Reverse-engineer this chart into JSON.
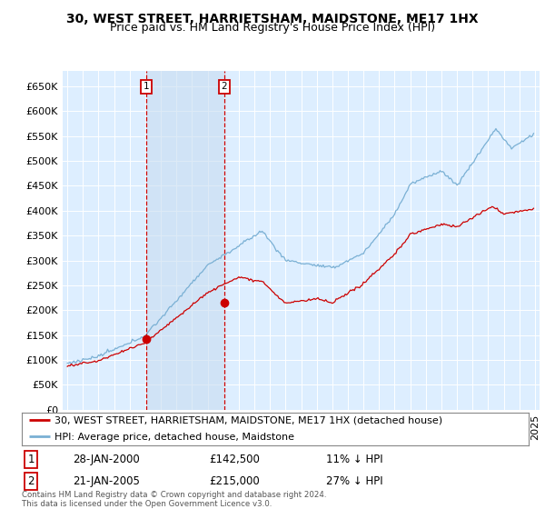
{
  "title": "30, WEST STREET, HARRIETSHAM, MAIDSTONE, ME17 1HX",
  "subtitle": "Price paid vs. HM Land Registry's House Price Index (HPI)",
  "ylim": [
    0,
    680000
  ],
  "yticks": [
    0,
    50000,
    100000,
    150000,
    200000,
    250000,
    300000,
    350000,
    400000,
    450000,
    500000,
    550000,
    600000,
    650000
  ],
  "ytick_labels": [
    "£0",
    "£50K",
    "£100K",
    "£150K",
    "£200K",
    "£250K",
    "£300K",
    "£350K",
    "£400K",
    "£450K",
    "£500K",
    "£550K",
    "£600K",
    "£650K"
  ],
  "xlim_min": 1994.7,
  "xlim_max": 2025.3,
  "sale1_x": 2000.07,
  "sale1_y": 142500,
  "sale1_date": "28-JAN-2000",
  "sale1_price": "£142,500",
  "sale1_pct": "11% ↓ HPI",
  "sale2_x": 2005.06,
  "sale2_y": 215000,
  "sale2_date": "21-JAN-2005",
  "sale2_price": "£215,000",
  "sale2_pct": "27% ↓ HPI",
  "legend_line1": "30, WEST STREET, HARRIETSHAM, MAIDSTONE, ME17 1HX (detached house)",
  "legend_line2": "HPI: Average price, detached house, Maidstone",
  "footnote1": "Contains HM Land Registry data © Crown copyright and database right 2024.",
  "footnote2": "This data is licensed under the Open Government Licence v3.0.",
  "red_color": "#cc0000",
  "blue_color": "#7ab0d4",
  "shade_color": "#ddeeff",
  "bg_color": "#ddeeff",
  "grid_color": "#ffffff",
  "title_fontsize": 10,
  "subtitle_fontsize": 9,
  "tick_fontsize": 8,
  "legend_fontsize": 8,
  "table_fontsize": 8.5
}
